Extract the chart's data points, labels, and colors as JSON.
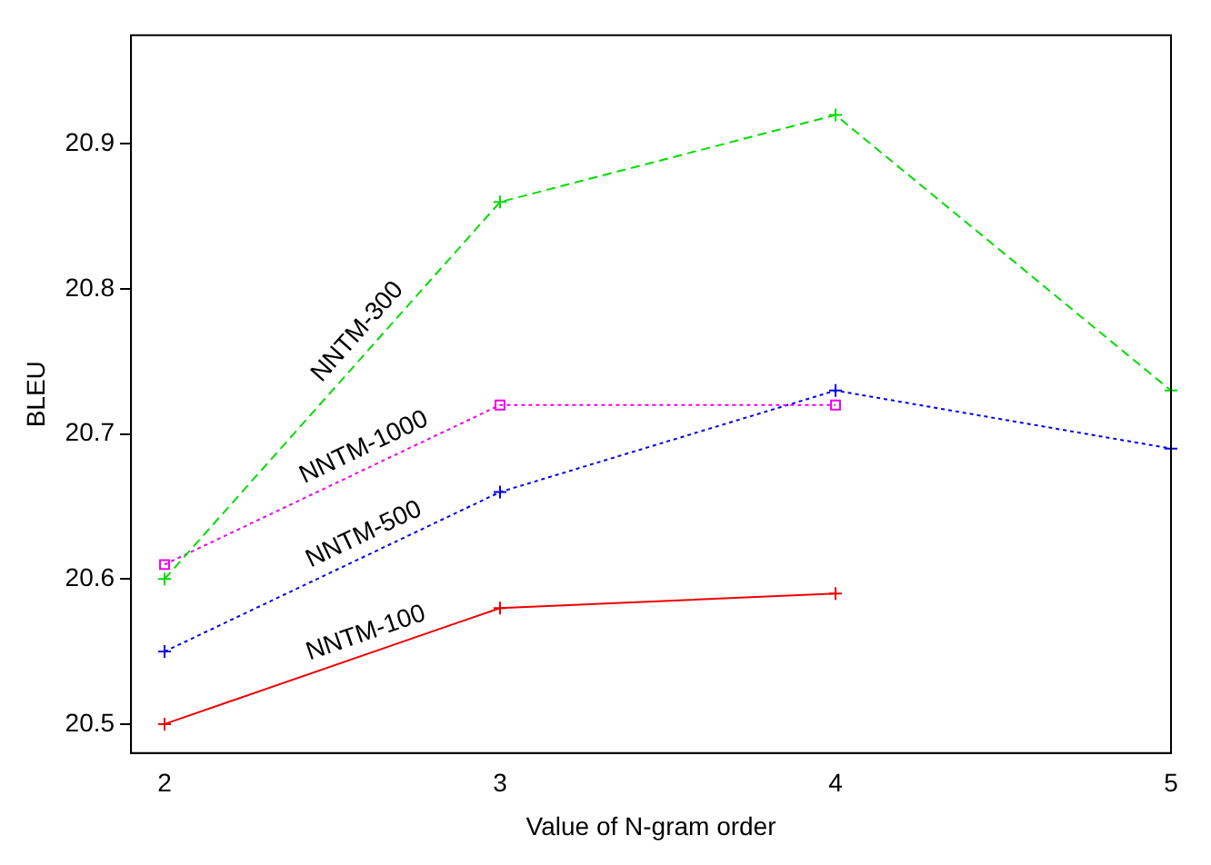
{
  "chart_data": {
    "type": "line",
    "xlabel": "Value of N-gram order",
    "ylabel": "BLEU",
    "x": [
      2,
      3,
      4,
      5
    ],
    "series": [
      {
        "name": "NNTM-300",
        "color": "#00dd00",
        "marker": "cross",
        "line_style": "dashed",
        "values": [
          20.6,
          20.86,
          20.92,
          20.73
        ]
      },
      {
        "name": "NNTM-1000",
        "color": "#ee00ee",
        "marker": "square",
        "line_style": "dotted",
        "values": [
          20.61,
          20.72,
          20.72,
          null
        ]
      },
      {
        "name": "NNTM-500",
        "color": "#0000ee",
        "marker": "cross",
        "line_style": "dotted",
        "values": [
          20.55,
          20.66,
          20.73,
          20.69
        ]
      },
      {
        "name": "NNTM-100",
        "color": "#ee0000",
        "marker": "cross",
        "line_style": "solid",
        "values": [
          20.5,
          20.58,
          20.59,
          null
        ]
      }
    ],
    "xlim": [
      1.9,
      5
    ],
    "xticks": [
      2,
      3,
      4,
      5
    ],
    "ylim": [
      20.48,
      20.975
    ],
    "yticks": [
      20.5,
      20.6,
      20.7,
      20.8,
      20.9
    ],
    "grid": false,
    "legend": false
  }
}
